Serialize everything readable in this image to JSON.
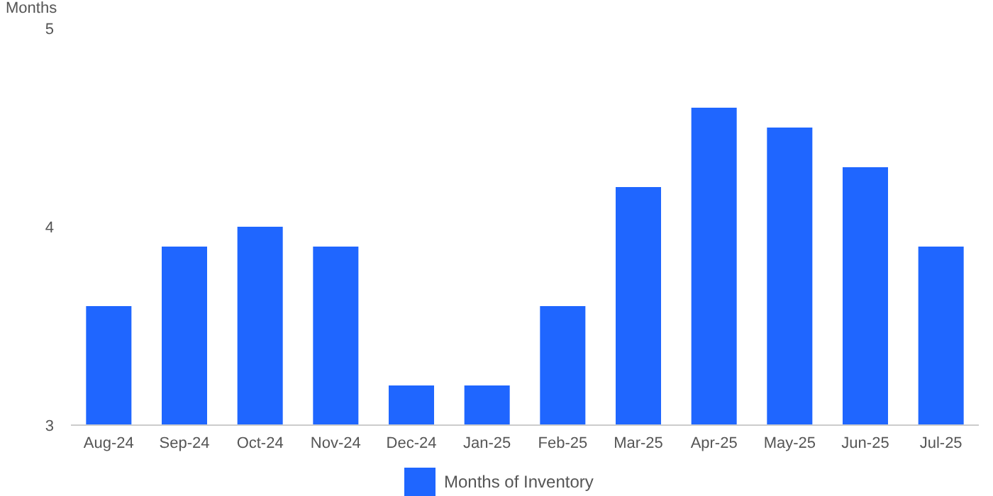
{
  "chart_data": {
    "type": "bar",
    "ylabel": "Months",
    "categories": [
      "Aug-24",
      "Sep-24",
      "Oct-24",
      "Nov-24",
      "Dec-24",
      "Jan-25",
      "Feb-25",
      "Mar-25",
      "Apr-25",
      "May-25",
      "Jun-25",
      "Jul-25"
    ],
    "series": [
      {
        "name": "Months of Inventory",
        "color": "#1f66ff",
        "values": [
          3.6,
          3.9,
          4.0,
          3.9,
          3.2,
          3.2,
          3.6,
          4.2,
          4.6,
          4.5,
          4.3,
          3.9
        ]
      }
    ],
    "ylim": [
      3,
      5
    ],
    "yticks": [
      3,
      4,
      5
    ],
    "grid": false,
    "legend": "bottom"
  }
}
